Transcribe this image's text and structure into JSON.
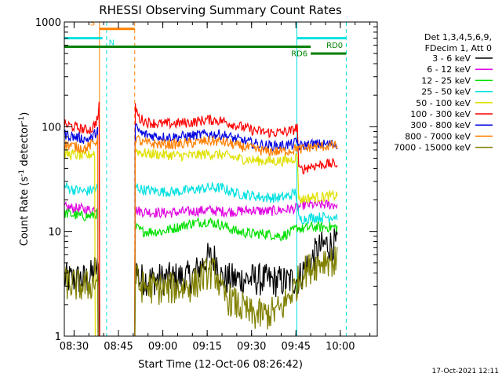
{
  "chart_data": {
    "type": "line",
    "title": "RHESSI Observing Summary Count Rates",
    "xlabel": "Start Time (12-Oct-06 08:26:42)",
    "ylabel_parts": [
      "Count Rate (s",
      "-1",
      " detector",
      "-1",
      ")"
    ],
    "yscale": "log",
    "ylim": [
      1,
      1000
    ],
    "xlim_min": [
      506.7,
      612.5
    ],
    "x_ticks": [
      {
        "min": 510,
        "label": "08:30"
      },
      {
        "min": 525,
        "label": "08:45"
      },
      {
        "min": 540,
        "label": "09:00"
      },
      {
        "min": 555,
        "label": "09:15"
      },
      {
        "min": 570,
        "label": "09:30"
      },
      {
        "min": 585,
        "label": "09:45"
      },
      {
        "min": 600,
        "label": "10:00"
      }
    ],
    "y_ticks": [
      {
        "value": 1,
        "label": "1"
      },
      {
        "value": 10,
        "label": "10"
      },
      {
        "value": 100,
        "label": "100"
      },
      {
        "value": 1000,
        "label": "1000"
      }
    ],
    "legend_header": [
      "Det 1,3,4,5,6,9,",
      "FDecim 1, Att 0"
    ],
    "legend_position": "right",
    "series": [
      {
        "name": "3 - 6 keV",
        "color": "#000000",
        "points": [
          [
            506.7,
            3.5
          ],
          [
            512,
            3.5
          ],
          [
            515,
            3.5
          ],
          [
            517.5,
            4.5
          ],
          [
            518.5,
            4
          ],
          [
            518.6,
            0
          ],
          [
            530.5,
            0
          ],
          [
            530.6,
            5
          ],
          [
            531.5,
            4
          ],
          [
            532,
            3.5
          ],
          [
            540,
            3.5
          ],
          [
            550,
            3.7
          ],
          [
            555,
            5.5
          ],
          [
            558,
            5.5
          ],
          [
            560,
            3.5
          ],
          [
            570,
            3.5
          ],
          [
            582,
            3.3
          ],
          [
            585,
            3.5
          ],
          [
            586,
            3.5
          ],
          [
            588,
            4.5
          ],
          [
            590,
            5
          ],
          [
            592,
            6.5
          ],
          [
            595,
            7.5
          ],
          [
            599,
            7.5
          ]
        ]
      },
      {
        "name": "6 - 12 keV",
        "color": "#e000e0",
        "points": [
          [
            506.7,
            17
          ],
          [
            512,
            16.5
          ],
          [
            516,
            16
          ],
          [
            518,
            17
          ],
          [
            518.6,
            0
          ],
          [
            530.5,
            0
          ],
          [
            530.6,
            16
          ],
          [
            533,
            15.5
          ],
          [
            540,
            15
          ],
          [
            550,
            15.5
          ],
          [
            555,
            16
          ],
          [
            560,
            15.5
          ],
          [
            565,
            15.5
          ],
          [
            570,
            16
          ],
          [
            575,
            15.5
          ],
          [
            580,
            16
          ],
          [
            585,
            16.5
          ],
          [
            586,
            17
          ],
          [
            587,
            18
          ],
          [
            599,
            18
          ]
        ]
      },
      {
        "name": "12 - 25 keV",
        "color": "#00e000",
        "points": [
          [
            506.7,
            15
          ],
          [
            512,
            14
          ],
          [
            516,
            14
          ],
          [
            518,
            15
          ],
          [
            518.6,
            0
          ],
          [
            530.5,
            0
          ],
          [
            530.6,
            11
          ],
          [
            533,
            10
          ],
          [
            540,
            10
          ],
          [
            545,
            11
          ],
          [
            550,
            12
          ],
          [
            555,
            12.5
          ],
          [
            560,
            11.5
          ],
          [
            565,
            10
          ],
          [
            570,
            9.5
          ],
          [
            575,
            9.5
          ],
          [
            580,
            9
          ],
          [
            584,
            10
          ],
          [
            585.5,
            11
          ],
          [
            587,
            10.5
          ],
          [
            590,
            11
          ],
          [
            599,
            11
          ]
        ]
      },
      {
        "name": "25 - 50 keV",
        "color": "#00e0e0",
        "points": [
          [
            506.7,
            27
          ],
          [
            510,
            25
          ],
          [
            514,
            24
          ],
          [
            518,
            26
          ],
          [
            518.6,
            0
          ],
          [
            530.5,
            0
          ],
          [
            530.6,
            27
          ],
          [
            533,
            25
          ],
          [
            540,
            24
          ],
          [
            545,
            24
          ],
          [
            550,
            25
          ],
          [
            555,
            26
          ],
          [
            560,
            26
          ],
          [
            565,
            23
          ],
          [
            570,
            22
          ],
          [
            575,
            21
          ],
          [
            580,
            21
          ],
          [
            583,
            22
          ],
          [
            585,
            24
          ],
          [
            586,
            13
          ],
          [
            590,
            13.5
          ],
          [
            599,
            14
          ]
        ]
      },
      {
        "name": "50 - 100 keV",
        "color": "#e0e000",
        "points": [
          [
            506.7,
            55
          ],
          [
            510,
            54
          ],
          [
            514,
            52
          ],
          [
            517,
            57
          ],
          [
            518.6,
            0
          ],
          [
            530.5,
            0
          ],
          [
            530.6,
            60
          ],
          [
            533,
            56
          ],
          [
            540,
            54
          ],
          [
            545,
            53
          ],
          [
            550,
            53
          ],
          [
            555,
            55
          ],
          [
            560,
            54
          ],
          [
            565,
            50
          ],
          [
            570,
            48
          ],
          [
            575,
            47
          ],
          [
            580,
            47
          ],
          [
            583,
            48
          ],
          [
            585.5,
            52
          ],
          [
            586,
            20
          ],
          [
            590,
            21
          ],
          [
            599,
            22
          ]
        ]
      },
      {
        "name": "100 - 300 keV",
        "color": "#ff0000",
        "points": [
          [
            506.7,
            105
          ],
          [
            510,
            100
          ],
          [
            514,
            93
          ],
          [
            516,
            95
          ],
          [
            518,
            120
          ],
          [
            518.5,
            160
          ],
          [
            518.6,
            0
          ],
          [
            530.5,
            0
          ],
          [
            530.6,
            160
          ],
          [
            532,
            120
          ],
          [
            535,
            110
          ],
          [
            540,
            106
          ],
          [
            545,
            108
          ],
          [
            550,
            110
          ],
          [
            555,
            117
          ],
          [
            560,
            114
          ],
          [
            565,
            103
          ],
          [
            570,
            93
          ],
          [
            575,
            88
          ],
          [
            580,
            88
          ],
          [
            584,
            92
          ],
          [
            585.5,
            100
          ],
          [
            586,
            38
          ],
          [
            590,
            42
          ],
          [
            595,
            44
          ],
          [
            599,
            44
          ]
        ]
      },
      {
        "name": "300 - 800 keV",
        "color": "#0000e0",
        "points": [
          [
            506.7,
            85
          ],
          [
            510,
            80
          ],
          [
            514,
            76
          ],
          [
            516,
            77
          ],
          [
            518,
            95
          ],
          [
            518.6,
            0
          ],
          [
            530.5,
            0
          ],
          [
            530.6,
            100
          ],
          [
            533,
            85
          ],
          [
            540,
            80
          ],
          [
            545,
            80
          ],
          [
            550,
            82
          ],
          [
            555,
            85
          ],
          [
            560,
            84
          ],
          [
            565,
            76
          ],
          [
            570,
            70
          ],
          [
            575,
            66
          ],
          [
            580,
            66
          ],
          [
            584,
            68
          ],
          [
            585.5,
            72
          ],
          [
            586,
            65
          ],
          [
            590,
            68
          ],
          [
            599,
            68
          ]
        ]
      },
      {
        "name": "800 - 7000 keV",
        "color": "#ff8000",
        "points": [
          [
            506.7,
            68
          ],
          [
            510,
            65
          ],
          [
            514,
            62
          ],
          [
            518,
            75
          ],
          [
            518.6,
            0
          ],
          [
            530.5,
            0
          ],
          [
            530.6,
            80
          ],
          [
            533,
            70
          ],
          [
            540,
            68
          ],
          [
            545,
            68
          ],
          [
            550,
            70
          ],
          [
            555,
            73
          ],
          [
            560,
            72
          ],
          [
            565,
            66
          ],
          [
            570,
            62
          ],
          [
            575,
            58
          ],
          [
            580,
            58
          ],
          [
            584,
            60
          ],
          [
            585.5,
            64
          ],
          [
            586,
            60
          ],
          [
            590,
            64
          ],
          [
            599,
            66
          ]
        ]
      },
      {
        "name": "7000 - 15000 keV",
        "color": "#808000",
        "points": [
          [
            506.7,
            3.2
          ],
          [
            512,
            3
          ],
          [
            515,
            3
          ],
          [
            518,
            3.5
          ],
          [
            518.6,
            0
          ],
          [
            530.5,
            0
          ],
          [
            530.6,
            4
          ],
          [
            532,
            3
          ],
          [
            540,
            2.8
          ],
          [
            550,
            3
          ],
          [
            555,
            4
          ],
          [
            558,
            4
          ],
          [
            560,
            2.5
          ],
          [
            565,
            2
          ],
          [
            570,
            1.6
          ],
          [
            575,
            1.6
          ],
          [
            580,
            1.8
          ],
          [
            583,
            2.5
          ],
          [
            585,
            3
          ],
          [
            587,
            4
          ],
          [
            590,
            4.5
          ],
          [
            595,
            5.5
          ],
          [
            599,
            5
          ]
        ]
      }
    ],
    "markers": [
      {
        "label": "S",
        "color": "#ff8000",
        "start": 518.6,
        "end": 530.5,
        "level": 860
      },
      {
        "label": "N",
        "color": "#00e0e0",
        "start": 506.7,
        "end": 519.6,
        "level": 700
      },
      {
        "label": "RD6",
        "color": "#008000",
        "start": 506.7,
        "end": 590,
        "level": 580
      },
      {
        "label": "RD0",
        "color": "#008000",
        "start": 590,
        "end": 602,
        "level": 500
      },
      {
        "label": "",
        "color": "#00e0e0",
        "start": 585.3,
        "end": 602,
        "level": 700
      }
    ],
    "vlines": [
      {
        "min": 518.6,
        "color": "#ff8000",
        "dash": false
      },
      {
        "min": 530.5,
        "color": "#ff8000",
        "dash": true
      },
      {
        "min": 521.0,
        "color": "#00e0e0",
        "dash": true
      },
      {
        "min": 585.3,
        "color": "#00e0e0",
        "dash": false
      },
      {
        "min": 602.0,
        "color": "#00e0e0",
        "dash": true
      }
    ],
    "timestamp": "17-Oct-2021 12:11"
  }
}
